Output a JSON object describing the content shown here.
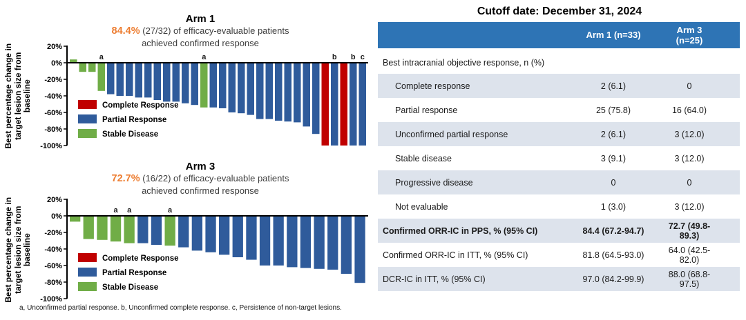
{
  "colors": {
    "CR": "#c00000",
    "PR": "#2f5b9b",
    "SD": "#70ad47",
    "table_header_bg": "#2e74b5",
    "row_shade": "#dde3ec",
    "highlight_orange": "#ed7d31"
  },
  "axis": {
    "label_lines": [
      "Best percentage change in",
      "target lesion size from",
      "baseline"
    ],
    "ticks": [
      20,
      0,
      -20,
      -40,
      -60,
      -80,
      -100
    ],
    "tick_suffix": "%"
  },
  "legend": [
    {
      "key": "CR",
      "label": "Complete Response"
    },
    {
      "key": "PR",
      "label": "Partial Response"
    },
    {
      "key": "SD",
      "label": "Stable Disease"
    }
  ],
  "footnote": "a, Unconfirmed partial response. b, Unconfirmed complete response. c, Persistence of non-target lesions.",
  "chart_data": [
    {
      "type": "bar",
      "id": "arm1-waterfall",
      "title": "Arm 1",
      "highlight_pct": "84.4%",
      "subtitle": "(27/32) of efficacy-evaluable patients",
      "subtitle_line2": "achieved confirmed response",
      "ylabel": "Best percentage change in target lesion size from baseline",
      "ylim": [
        -100,
        20
      ],
      "ytick_values": [
        20,
        0,
        -20,
        -40,
        -60,
        -80,
        -100
      ],
      "legend_position": "lower-left-inside",
      "grid": false,
      "points": [
        {
          "v": 4,
          "cat": "SD"
        },
        {
          "v": -11,
          "cat": "SD"
        },
        {
          "v": -11,
          "cat": "SD"
        },
        {
          "v": -34,
          "cat": "SD",
          "note": "a"
        },
        {
          "v": -38,
          "cat": "PR"
        },
        {
          "v": -40,
          "cat": "PR"
        },
        {
          "v": -40,
          "cat": "PR"
        },
        {
          "v": -42,
          "cat": "PR"
        },
        {
          "v": -42,
          "cat": "PR"
        },
        {
          "v": -45,
          "cat": "PR"
        },
        {
          "v": -47,
          "cat": "PR"
        },
        {
          "v": -47,
          "cat": "PR"
        },
        {
          "v": -49,
          "cat": "PR"
        },
        {
          "v": -51,
          "cat": "PR"
        },
        {
          "v": -54,
          "cat": "SD",
          "note": "a"
        },
        {
          "v": -54,
          "cat": "PR"
        },
        {
          "v": -55,
          "cat": "PR"
        },
        {
          "v": -60,
          "cat": "PR"
        },
        {
          "v": -61,
          "cat": "PR"
        },
        {
          "v": -63,
          "cat": "PR"
        },
        {
          "v": -68,
          "cat": "PR"
        },
        {
          "v": -68,
          "cat": "PR"
        },
        {
          "v": -70,
          "cat": "PR"
        },
        {
          "v": -71,
          "cat": "PR"
        },
        {
          "v": -72,
          "cat": "PR"
        },
        {
          "v": -77,
          "cat": "PR"
        },
        {
          "v": -86,
          "cat": "PR"
        },
        {
          "v": -100,
          "cat": "CR"
        },
        {
          "v": -100,
          "cat": "PR",
          "note": "b"
        },
        {
          "v": -100,
          "cat": "CR"
        },
        {
          "v": -100,
          "cat": "PR",
          "note": "b"
        },
        {
          "v": -100,
          "cat": "PR",
          "note": "c"
        }
      ]
    },
    {
      "type": "bar",
      "id": "arm3-waterfall",
      "title": "Arm 3",
      "highlight_pct": "72.7%",
      "subtitle": "(16/22) of efficacy-evaluable patients",
      "subtitle_line2": "achieved confirmed response",
      "ylabel": "Best percentage change in target lesion size from baseline",
      "ylim": [
        -100,
        20
      ],
      "ytick_values": [
        20,
        0,
        -20,
        -40,
        -60,
        -80,
        -100
      ],
      "legend_position": "lower-left-inside",
      "grid": false,
      "points": [
        {
          "v": -7,
          "cat": "SD"
        },
        {
          "v": -28,
          "cat": "SD"
        },
        {
          "v": -29,
          "cat": "SD"
        },
        {
          "v": -31,
          "cat": "SD",
          "note": "a"
        },
        {
          "v": -33,
          "cat": "SD",
          "note": "a"
        },
        {
          "v": -33,
          "cat": "PR"
        },
        {
          "v": -35,
          "cat": "PR"
        },
        {
          "v": -36,
          "cat": "SD",
          "note": "a"
        },
        {
          "v": -38,
          "cat": "PR"
        },
        {
          "v": -42,
          "cat": "PR"
        },
        {
          "v": -44,
          "cat": "PR"
        },
        {
          "v": -47,
          "cat": "PR"
        },
        {
          "v": -50,
          "cat": "PR"
        },
        {
          "v": -53,
          "cat": "PR"
        },
        {
          "v": -60,
          "cat": "PR"
        },
        {
          "v": -60,
          "cat": "PR"
        },
        {
          "v": -62,
          "cat": "PR"
        },
        {
          "v": -63,
          "cat": "PR"
        },
        {
          "v": -64,
          "cat": "PR"
        },
        {
          "v": -65,
          "cat": "PR"
        },
        {
          "v": -70,
          "cat": "PR"
        },
        {
          "v": -81,
          "cat": "PR"
        }
      ]
    },
    {
      "type": "table",
      "id": "response-table",
      "title": "Cutoff date: December 31, 2024",
      "columns": [
        "",
        "Arm 1 (n=33)",
        "Arm 3 (n=25)"
      ],
      "rows": [
        {
          "label": "Best intracranial objective response, n (%)",
          "arm1": "",
          "arm3": "",
          "style": "section",
          "shaded": false
        },
        {
          "label": "Complete response",
          "arm1": "2 (6.1)",
          "arm3": "0",
          "style": "sub",
          "shaded": true
        },
        {
          "label": "Partial response",
          "arm1": "25 (75.8)",
          "arm3": "16 (64.0)",
          "style": "sub",
          "shaded": false
        },
        {
          "label": "Unconfirmed partial response",
          "arm1": "2 (6.1)",
          "arm3": "3 (12.0)",
          "style": "sub",
          "shaded": true
        },
        {
          "label": "Stable disease",
          "arm1": "3 (9.1)",
          "arm3": "3 (12.0)",
          "style": "sub",
          "shaded": false
        },
        {
          "label": "Progressive disease",
          "arm1": "0",
          "arm3": "0",
          "style": "sub",
          "shaded": true
        },
        {
          "label": "Not evaluable",
          "arm1": "1 (3.0)",
          "arm3": "3 (12.0)",
          "style": "sub",
          "shaded": false
        },
        {
          "label": "Confirmed ORR-IC in PPS, % (95% CI)",
          "arm1": "84.4 (67.2-94.7)",
          "arm3": "72.7 (49.8-89.3)",
          "style": "bold",
          "shaded": true
        },
        {
          "label": "Confirmed ORR-IC in ITT, % (95% CI)",
          "arm1": "81.8 (64.5-93.0)",
          "arm3": "64.0 (42.5-82.0)",
          "style": "plain",
          "shaded": false
        },
        {
          "label": "DCR-IC in ITT, % (95% CI)",
          "arm1": "97.0 (84.2-99.9)",
          "arm3": "88.0 (68.8-97.5)",
          "style": "plain",
          "shaded": true
        }
      ]
    }
  ]
}
